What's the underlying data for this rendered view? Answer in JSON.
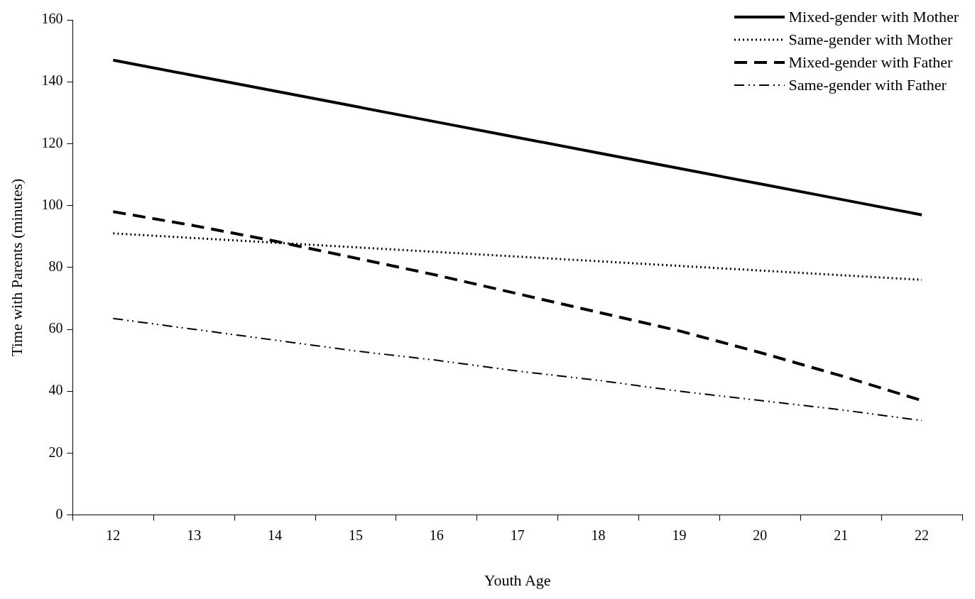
{
  "chart_data": {
    "type": "line",
    "xlabel": "Youth Age",
    "ylabel": "Time with Parents (minutes)",
    "categories": [
      "12",
      "13",
      "14",
      "15",
      "16",
      "17",
      "18",
      "19",
      "20",
      "21",
      "22"
    ],
    "series": [
      {
        "name": "Mixed-gender with Mother",
        "color": "#000000",
        "line_style": "solid",
        "values": [
          147,
          142,
          137,
          132,
          127,
          122,
          117,
          112,
          107,
          102,
          97
        ]
      },
      {
        "name": "Same-gender with Mother",
        "color": "#000000",
        "line_style": "dotted",
        "values": [
          91,
          89.5,
          88,
          86.5,
          85,
          83.5,
          82,
          80.5,
          79,
          77.5,
          76
        ]
      },
      {
        "name": "Mixed-gender with Father",
        "color": "#000000",
        "line_style": "dashed",
        "values": [
          98,
          93.5,
          88.5,
          83,
          77.5,
          71.5,
          65.5,
          59.5,
          52.5,
          45,
          37
        ]
      },
      {
        "name": "Same-gender with Father",
        "color": "#000000",
        "line_style": "dashdot",
        "values": [
          63.5,
          60,
          56.5,
          53,
          50,
          46.5,
          43.5,
          40,
          37,
          34,
          30.5
        ]
      }
    ],
    "ylim": [
      0,
      160
    ],
    "yticks": [
      0,
      20,
      40,
      60,
      80,
      100,
      120,
      140,
      160
    ],
    "grid": false,
    "legend": "top right",
    "marker": "none"
  }
}
